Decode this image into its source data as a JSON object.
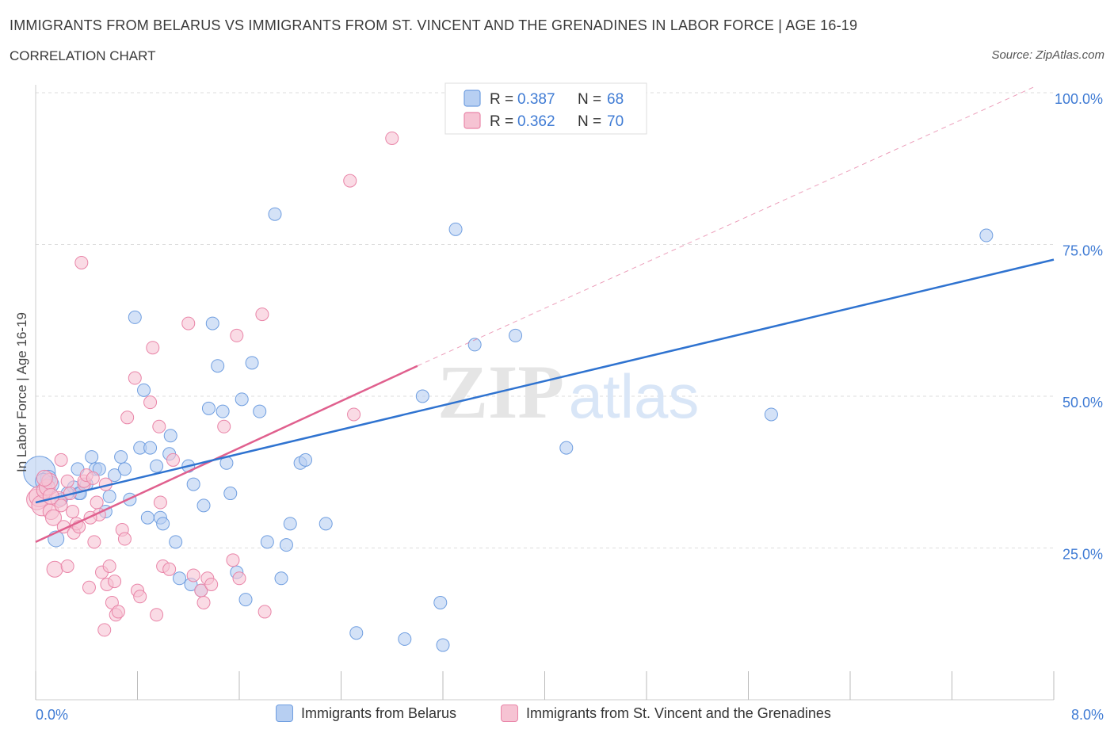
{
  "header": {
    "title": "IMMIGRANTS FROM BELARUS VS IMMIGRANTS FROM ST. VINCENT AND THE GRENADINES IN LABOR FORCE | AGE 16-19",
    "subtitle": "CORRELATION CHART",
    "source": "Source: ZipAtlas.com"
  },
  "watermark": {
    "zip": "ZIP",
    "atlas": "atlas"
  },
  "colors": {
    "belarus_fill": "#b7cff2",
    "belarus_stroke": "#6f9ee0",
    "belarus_line": "#2f73d0",
    "svg_fill": "#f6c3d3",
    "svg_stroke": "#e985a8",
    "svg_line": "#e0608e",
    "axis_text": "#3f7bd4",
    "grid": "#dddddd"
  },
  "chart_data": {
    "type": "scatter",
    "title": "IMMIGRANTS FROM BELARUS VS IMMIGRANTS FROM ST. VINCENT AND THE GRENADINES IN LABOR FORCE | AGE 16-19",
    "ylabel": "In Labor Force | Age 16-19",
    "xlabel": "",
    "xlim": [
      0,
      8
    ],
    "ylim": [
      0,
      100
    ],
    "x_tick_labels": [
      "0.0%",
      "8.0%"
    ],
    "y_tick_labels": [
      "25.0%",
      "50.0%",
      "75.0%",
      "100.0%"
    ],
    "y_ticks": [
      25,
      50,
      75,
      100
    ],
    "grid": true,
    "legend_position": "top-center",
    "series": [
      {
        "name": "Immigrants from Belarus",
        "R": "0.387",
        "N": "68",
        "trend": {
          "x": [
            0,
            8
          ],
          "y": [
            32.5,
            72.5
          ]
        },
        "points": [
          [
            0.03,
            37.5
          ],
          [
            0.1,
            36.5
          ],
          [
            0.12,
            35.5
          ],
          [
            0.16,
            26.5
          ],
          [
            0.3,
            35
          ],
          [
            0.33,
            38
          ],
          [
            0.34,
            34
          ],
          [
            0.44,
            40
          ],
          [
            0.47,
            38
          ],
          [
            0.5,
            38
          ],
          [
            0.55,
            31
          ],
          [
            0.58,
            33.5
          ],
          [
            0.62,
            37
          ],
          [
            0.67,
            40
          ],
          [
            0.7,
            38
          ],
          [
            0.74,
            33
          ],
          [
            0.78,
            63
          ],
          [
            0.82,
            41.5
          ],
          [
            0.85,
            51
          ],
          [
            0.88,
            30
          ],
          [
            0.9,
            41.5
          ],
          [
            0.95,
            38.5
          ],
          [
            0.98,
            30
          ],
          [
            1.05,
            40.5
          ],
          [
            1.06,
            43.5
          ],
          [
            1.1,
            26
          ],
          [
            1.13,
            20
          ],
          [
            1.2,
            38.5
          ],
          [
            1.22,
            19
          ],
          [
            1.24,
            35.5
          ],
          [
            1.3,
            18
          ],
          [
            1.32,
            32
          ],
          [
            1.36,
            48
          ],
          [
            1.39,
            62
          ],
          [
            1.43,
            55
          ],
          [
            1.47,
            47.5
          ],
          [
            1.5,
            39
          ],
          [
            1.53,
            34
          ],
          [
            1.58,
            21
          ],
          [
            1.62,
            49.5
          ],
          [
            1.65,
            16.5
          ],
          [
            1.7,
            55.5
          ],
          [
            1.76,
            47.5
          ],
          [
            1.82,
            26
          ],
          [
            1.88,
            80
          ],
          [
            1.93,
            20
          ],
          [
            1.97,
            25.5
          ],
          [
            2.0,
            29
          ],
          [
            2.08,
            39
          ],
          [
            2.12,
            39.5
          ],
          [
            2.28,
            29
          ],
          [
            2.52,
            11
          ],
          [
            2.9,
            10
          ],
          [
            3.04,
            50
          ],
          [
            3.18,
            16
          ],
          [
            3.2,
            9
          ],
          [
            3.3,
            77.5
          ],
          [
            3.45,
            58.5
          ],
          [
            3.77,
            60
          ],
          [
            4.17,
            41.5
          ],
          [
            5.78,
            47
          ],
          [
            7.47,
            76.5
          ],
          [
            0.06,
            36
          ],
          [
            0.2,
            33
          ],
          [
            0.25,
            34
          ],
          [
            0.4,
            35.5
          ],
          [
            1.0,
            29
          ],
          [
            0.35,
            34
          ]
        ]
      },
      {
        "name": "Immigrants from St. Vincent and the Grenadines",
        "R": "0.362",
        "N": "70",
        "trend": {
          "x": [
            0,
            3.0
          ],
          "y": [
            26,
            55
          ]
        },
        "trend_extension": {
          "x": [
            3.0,
            7.85
          ],
          "y": [
            55,
            101
          ]
        },
        "points": [
          [
            0.01,
            33
          ],
          [
            0.03,
            33.5
          ],
          [
            0.05,
            32
          ],
          [
            0.07,
            34.5
          ],
          [
            0.09,
            35
          ],
          [
            0.11,
            36
          ],
          [
            0.12,
            31
          ],
          [
            0.14,
            30
          ],
          [
            0.15,
            21.5
          ],
          [
            0.18,
            33
          ],
          [
            0.2,
            39.5
          ],
          [
            0.22,
            28.5
          ],
          [
            0.25,
            36
          ],
          [
            0.25,
            22
          ],
          [
            0.27,
            34
          ],
          [
            0.29,
            31
          ],
          [
            0.3,
            27.5
          ],
          [
            0.32,
            29
          ],
          [
            0.34,
            28.5
          ],
          [
            0.36,
            72
          ],
          [
            0.38,
            35.5
          ],
          [
            0.38,
            36
          ],
          [
            0.4,
            37
          ],
          [
            0.42,
            18.5
          ],
          [
            0.45,
            36.5
          ],
          [
            0.46,
            26
          ],
          [
            0.48,
            32.5
          ],
          [
            0.5,
            30.5
          ],
          [
            0.52,
            21
          ],
          [
            0.54,
            11.5
          ],
          [
            0.55,
            35.5
          ],
          [
            0.56,
            19
          ],
          [
            0.58,
            22
          ],
          [
            0.6,
            16
          ],
          [
            0.62,
            19.5
          ],
          [
            0.63,
            14
          ],
          [
            0.65,
            14.5
          ],
          [
            0.68,
            28
          ],
          [
            0.7,
            26.5
          ],
          [
            0.72,
            46.5
          ],
          [
            0.78,
            53
          ],
          [
            0.8,
            18
          ],
          [
            0.82,
            17
          ],
          [
            0.9,
            49
          ],
          [
            0.92,
            58
          ],
          [
            0.95,
            14
          ],
          [
            0.97,
            45
          ],
          [
            0.98,
            32.5
          ],
          [
            1.0,
            22
          ],
          [
            1.05,
            21.5
          ],
          [
            1.08,
            39.5
          ],
          [
            1.2,
            62
          ],
          [
            1.24,
            20.5
          ],
          [
            1.3,
            18
          ],
          [
            1.32,
            16
          ],
          [
            1.35,
            20
          ],
          [
            1.38,
            19
          ],
          [
            1.48,
            45
          ],
          [
            1.55,
            23
          ],
          [
            1.58,
            60
          ],
          [
            1.6,
            20
          ],
          [
            1.78,
            63.5
          ],
          [
            1.8,
            14.5
          ],
          [
            2.47,
            85.5
          ],
          [
            2.5,
            47
          ],
          [
            2.8,
            92.5
          ],
          [
            0.07,
            36.5
          ],
          [
            0.12,
            33.5
          ],
          [
            0.43,
            30
          ],
          [
            0.2,
            32
          ]
        ]
      }
    ]
  }
}
